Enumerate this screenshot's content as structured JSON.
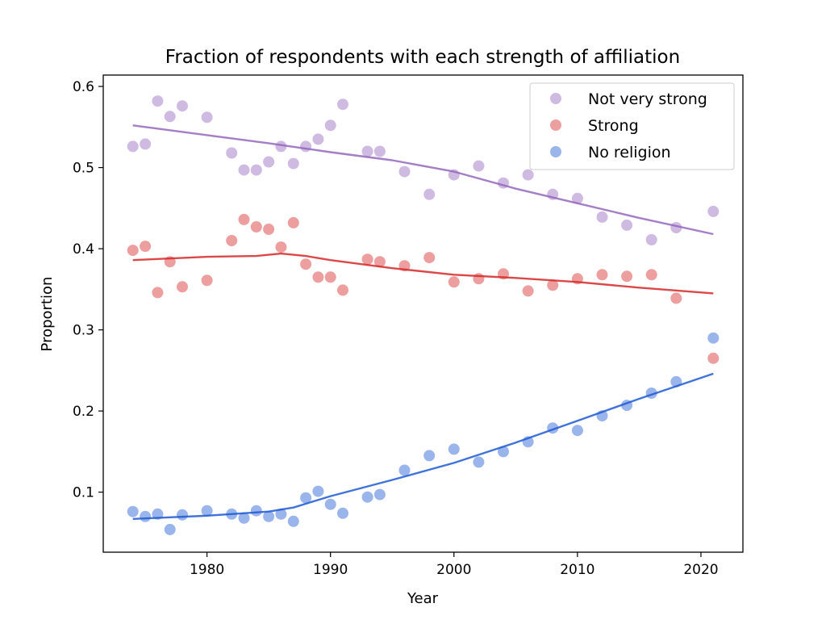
{
  "chart_data": {
    "type": "scatter",
    "title": "Fraction of respondents with each strength of affiliation",
    "xlabel": "Year",
    "ylabel": "Proportion",
    "xlim": [
      1971.6,
      2023.4
    ],
    "ylim": [
      0.026,
      0.614
    ],
    "xticks": [
      1980,
      1990,
      2000,
      2010,
      2020
    ],
    "yticks": [
      0.1,
      0.2,
      0.3,
      0.4,
      0.5,
      0.6
    ],
    "grid": false,
    "legend_position": "top-right",
    "series": [
      {
        "name": "Not very strong",
        "color": "#9467bd",
        "x": [
          1974,
          1975,
          1976,
          1977,
          1978,
          1980,
          1982,
          1983,
          1984,
          1985,
          1986,
          1987,
          1988,
          1989,
          1990,
          1991,
          1993,
          1994,
          1996,
          1998,
          2000,
          2002,
          2004,
          2006,
          2008,
          2010,
          2012,
          2014,
          2016,
          2018,
          2021
        ],
        "y": [
          0.526,
          0.529,
          0.582,
          0.563,
          0.576,
          0.562,
          0.518,
          0.497,
          0.497,
          0.507,
          0.526,
          0.505,
          0.526,
          0.535,
          0.552,
          0.578,
          0.52,
          0.52,
          0.495,
          0.467,
          0.491,
          0.502,
          0.481,
          0.491,
          0.467,
          0.462,
          0.439,
          0.429,
          0.411,
          0.426,
          0.446
        ],
        "trend_x": [
          1974,
          1980,
          1985,
          1990,
          1995,
          2000,
          2005,
          2010,
          2015,
          2021
        ],
        "trend_y": [
          0.552,
          0.54,
          0.53,
          0.519,
          0.509,
          0.495,
          0.474,
          0.456,
          0.438,
          0.418
        ]
      },
      {
        "name": "Strong",
        "color": "#d62728",
        "x": [
          1974,
          1975,
          1976,
          1977,
          1978,
          1980,
          1982,
          1983,
          1984,
          1985,
          1986,
          1987,
          1988,
          1989,
          1990,
          1991,
          1993,
          1994,
          1996,
          1998,
          2000,
          2002,
          2004,
          2006,
          2008,
          2010,
          2012,
          2014,
          2016,
          2018,
          2021
        ],
        "y": [
          0.398,
          0.403,
          0.346,
          0.384,
          0.353,
          0.361,
          0.41,
          0.436,
          0.427,
          0.424,
          0.402,
          0.432,
          0.381,
          0.365,
          0.365,
          0.349,
          0.387,
          0.384,
          0.379,
          0.389,
          0.359,
          0.363,
          0.369,
          0.348,
          0.355,
          0.363,
          0.368,
          0.366,
          0.368,
          0.339,
          0.265
        ],
        "trend_x": [
          1974,
          1980,
          1984,
          1986,
          1988,
          1990,
          1995,
          2000,
          2005,
          2010,
          2015,
          2021
        ],
        "trend_y": [
          0.386,
          0.39,
          0.391,
          0.394,
          0.391,
          0.386,
          0.376,
          0.368,
          0.364,
          0.359,
          0.352,
          0.345
        ]
      },
      {
        "name": "No religion",
        "color": "#1f5bd3",
        "x": [
          1974,
          1975,
          1976,
          1977,
          1978,
          1980,
          1982,
          1983,
          1984,
          1985,
          1986,
          1987,
          1988,
          1989,
          1990,
          1991,
          1993,
          1994,
          1996,
          1998,
          2000,
          2002,
          2004,
          2006,
          2008,
          2010,
          2012,
          2014,
          2016,
          2018,
          2021
        ],
        "y": [
          0.076,
          0.07,
          0.073,
          0.054,
          0.072,
          0.077,
          0.073,
          0.068,
          0.077,
          0.07,
          0.073,
          0.064,
          0.093,
          0.101,
          0.085,
          0.074,
          0.094,
          0.097,
          0.127,
          0.145,
          0.153,
          0.137,
          0.15,
          0.162,
          0.179,
          0.176,
          0.194,
          0.207,
          0.222,
          0.236,
          0.29
        ],
        "trend_x": [
          1974,
          1980,
          1985,
          1987,
          1990,
          1995,
          2000,
          2005,
          2010,
          2015,
          2021
        ],
        "trend_y": [
          0.067,
          0.071,
          0.076,
          0.081,
          0.095,
          0.115,
          0.136,
          0.161,
          0.188,
          0.215,
          0.246
        ]
      }
    ]
  }
}
